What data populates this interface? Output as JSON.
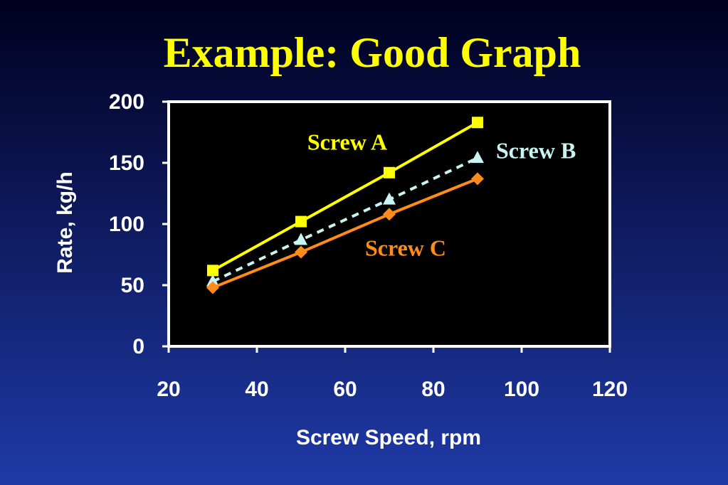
{
  "chart_data": {
    "type": "line",
    "title": "Example: Good Graph",
    "x_label": "Screw Speed, rpm",
    "y_label": "Rate, kg/h",
    "x": [
      30,
      50,
      70,
      90
    ],
    "series": [
      {
        "name": "Screw A",
        "color": "#ffff00",
        "marker": "square",
        "line_style": "solid",
        "values": [
          62,
          102,
          142,
          183
        ]
      },
      {
        "name": "Screw B",
        "color": "#c8f4f4",
        "marker": "triangle",
        "line_style": "dashed",
        "values": [
          53,
          87,
          120,
          154
        ]
      },
      {
        "name": "Screw C",
        "color": "#ff8c1a",
        "marker": "diamond",
        "line_style": "solid",
        "values": [
          48,
          77,
          108,
          137
        ]
      }
    ],
    "xlim": [
      20,
      120
    ],
    "xticks": [
      20,
      40,
      60,
      80,
      100,
      120
    ],
    "ylim": [
      0,
      200
    ],
    "yticks": [
      0,
      50,
      100,
      150,
      200
    ]
  }
}
